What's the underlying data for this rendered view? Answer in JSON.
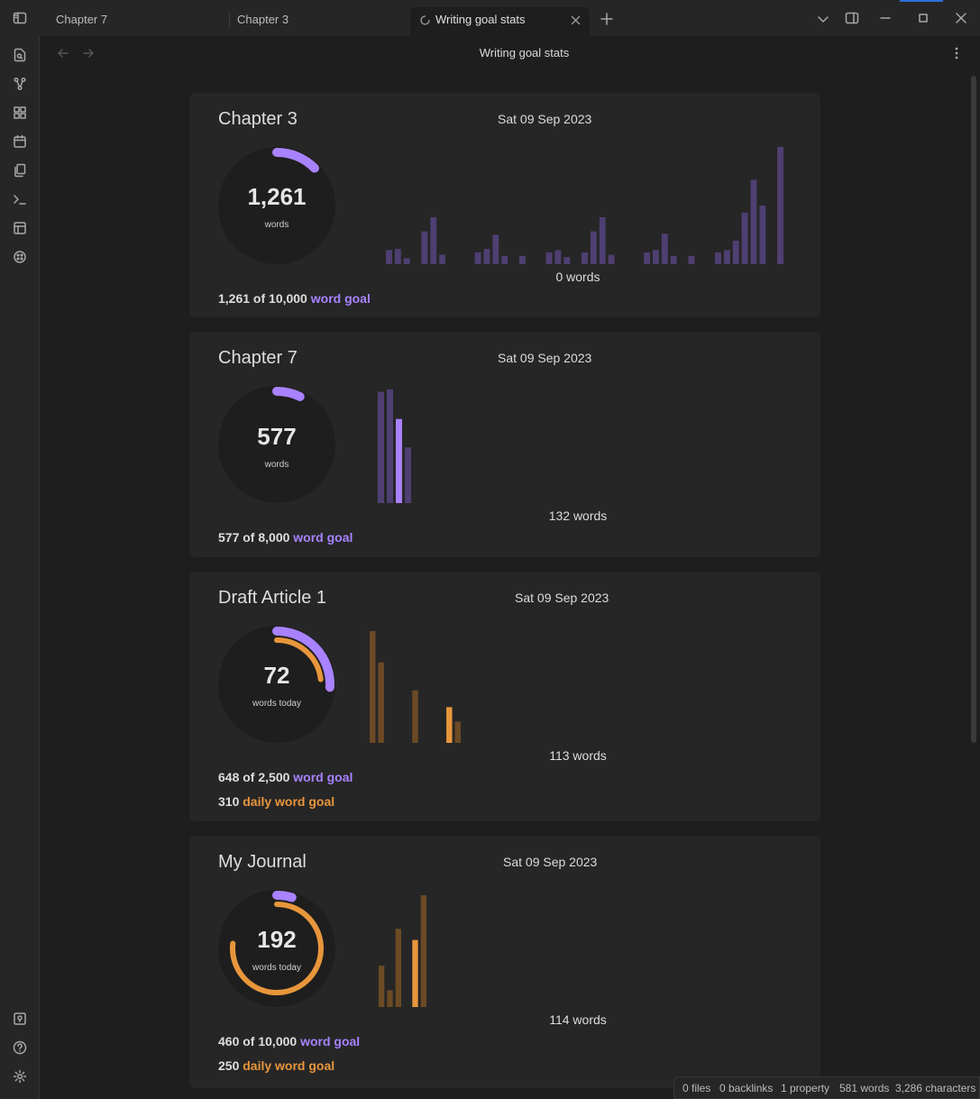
{
  "tabs": [
    {
      "label": "Chapter 7"
    },
    {
      "label": "Chapter 3"
    },
    {
      "label": "Writing goal stats"
    }
  ],
  "view_title": "Writing goal stats",
  "colors": {
    "purple": "#a882ff",
    "orange": "#e8963c",
    "purple_dim": "#4f3f72",
    "orange_dim": "#6b4a25"
  },
  "cards": [
    {
      "title": "Chapter 3",
      "date": "Sat 09 Sep 2023",
      "count": "1,261",
      "count_label": "words",
      "goal_progress": 0.1261,
      "bar_label": "0 words",
      "bars": [
        0.12,
        0.13,
        0.05,
        0,
        0.28,
        0.4,
        0.08,
        0,
        0,
        0,
        0.1,
        0.13,
        0.25,
        0.07,
        0,
        0.07,
        0,
        0,
        0.1,
        0.12,
        0.06,
        0,
        0.1,
        0.28,
        0.4,
        0.08,
        0,
        0,
        0,
        0.1,
        0.12,
        0.26,
        0.07,
        0,
        0.07,
        0,
        0,
        0.1,
        0.12,
        0.2,
        0.44,
        0.72,
        0.5,
        0,
        1.0
      ],
      "highlight_index": -1,
      "goal_line": {
        "value": "1,261 of 10,000",
        "label": "word goal"
      }
    },
    {
      "title": "Chapter 7",
      "date": "Sat 09 Sep 2023",
      "count": "577",
      "count_label": "words",
      "goal_progress": 0.072,
      "bar_label": "132 words",
      "bars": [
        0.98,
        1.0,
        0.74,
        0.49
      ],
      "highlight_index": 2,
      "goal_line": {
        "value": "577 of 8,000",
        "label": "word goal"
      }
    },
    {
      "title": "Draft Article 1",
      "date": "Sat 09 Sep 2023",
      "count": "72",
      "count_label": "words today",
      "goal_progress": 0.259,
      "daily_progress": 0.232,
      "bar_label": "113 words",
      "bars": [
        1.0,
        0.72,
        0,
        0,
        0,
        0.47,
        0,
        0,
        0,
        0.32,
        0.19
      ],
      "highlight_index": 9,
      "goal_line": {
        "value": "648 of 2,500",
        "label": "word goal"
      },
      "daily_line": {
        "value": "310",
        "label": "daily word goal"
      }
    },
    {
      "title": "My Journal",
      "date": "Sat 09 Sep 2023",
      "count": "192",
      "count_label": "words today",
      "goal_progress": 0.046,
      "daily_progress": 0.768,
      "bar_label": "114 words",
      "bars": [
        0.37,
        0.15,
        0.7,
        0,
        0.6,
        1.0
      ],
      "highlight_index": 4,
      "goal_line": {
        "value": "460 of 10,000",
        "label": "word goal"
      },
      "daily_line": {
        "value": "250",
        "label": "daily word goal"
      }
    }
  ],
  "status": {
    "files": "0 files",
    "backlinks": "0 backlinks",
    "properties": "1 property",
    "words": "581 words",
    "characters": "3,286 characters"
  }
}
